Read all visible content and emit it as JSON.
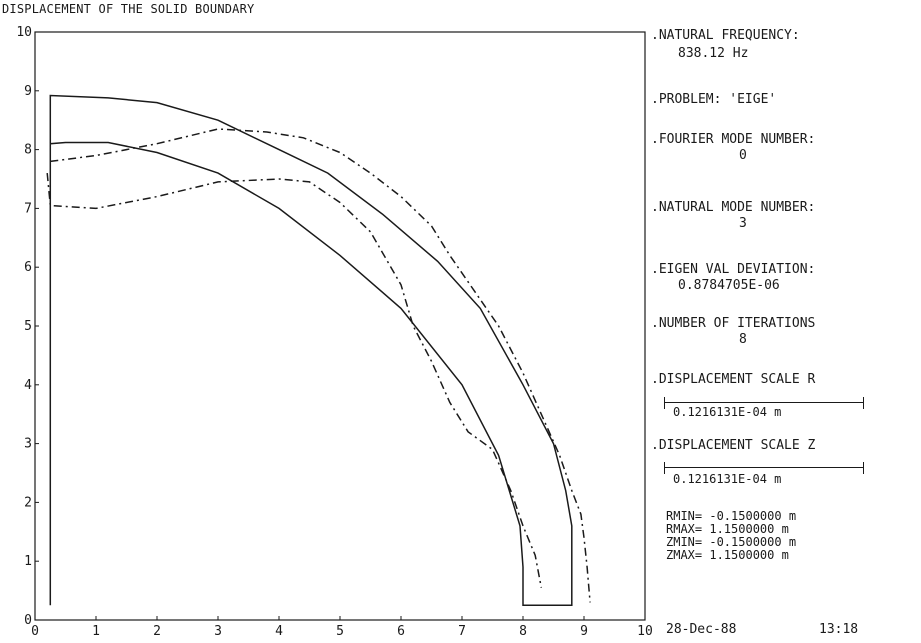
{
  "chart_data": {
    "type": "line",
    "title": "DISPLACEMENT OF THE SOLID BOUNDARY",
    "xlim": [
      0,
      10
    ],
    "ylim": [
      0,
      10
    ],
    "x_ticks": [
      "0",
      "1",
      "2",
      "3",
      "4",
      "5",
      "6",
      "7",
      "8",
      "9",
      "10"
    ],
    "y_ticks": [
      "0",
      "1",
      "2",
      "3",
      "4",
      "5",
      "6",
      "7",
      "8",
      "9",
      "10"
    ],
    "grid": false,
    "series": [
      {
        "style": "solid",
        "color": "#1a1a1a",
        "points": [
          [
            0.25,
            0.25
          ],
          [
            0.25,
            8.1
          ],
          [
            0.5,
            8.12
          ],
          [
            1.2,
            8.12
          ],
          [
            2.0,
            7.95
          ],
          [
            3.0,
            7.6
          ],
          [
            4.0,
            7.0
          ],
          [
            5.0,
            6.2
          ],
          [
            6.0,
            5.3
          ],
          [
            7.0,
            4.0
          ],
          [
            7.6,
            2.8
          ],
          [
            7.95,
            1.6
          ],
          [
            8.0,
            0.9
          ],
          [
            8.0,
            0.25
          ],
          [
            8.8,
            0.25
          ],
          [
            8.8,
            1.6
          ],
          [
            8.7,
            2.2
          ],
          [
            8.5,
            3.0
          ],
          [
            8.0,
            4.0
          ],
          [
            7.3,
            5.3
          ],
          [
            6.6,
            6.1
          ],
          [
            5.7,
            6.9
          ],
          [
            4.8,
            7.6
          ],
          [
            4.0,
            8.0
          ],
          [
            3.0,
            8.5
          ],
          [
            2.0,
            8.8
          ],
          [
            1.2,
            8.88
          ],
          [
            0.25,
            8.92
          ]
        ]
      },
      {
        "style": "dash-dot",
        "color": "#1a1a1a",
        "points": [
          [
            0.25,
            7.8
          ],
          [
            1.0,
            7.9
          ],
          [
            2.0,
            8.1
          ],
          [
            3.0,
            8.35
          ],
          [
            3.8,
            8.3
          ],
          [
            4.4,
            8.2
          ],
          [
            5.0,
            7.95
          ],
          [
            5.5,
            7.6
          ],
          [
            6.0,
            7.2
          ],
          [
            6.5,
            6.7
          ],
          [
            6.8,
            6.2
          ],
          [
            7.2,
            5.6
          ],
          [
            7.6,
            5.0
          ],
          [
            8.0,
            4.2
          ],
          [
            8.3,
            3.5
          ],
          [
            8.6,
            2.8
          ],
          [
            8.8,
            2.2
          ],
          [
            8.95,
            1.8
          ],
          [
            9.0,
            1.4
          ],
          [
            9.05,
            0.9
          ],
          [
            9.1,
            0.3
          ]
        ]
      },
      {
        "style": "dash-dot",
        "color": "#1a1a1a",
        "points": [
          [
            0.2,
            7.6
          ],
          [
            0.25,
            7.05
          ],
          [
            1.0,
            7.0
          ],
          [
            2.0,
            7.2
          ],
          [
            3.0,
            7.45
          ],
          [
            4.0,
            7.5
          ],
          [
            4.5,
            7.45
          ],
          [
            5.0,
            7.1
          ],
          [
            5.5,
            6.6
          ],
          [
            6.0,
            5.7
          ],
          [
            6.2,
            5.0
          ],
          [
            6.5,
            4.4
          ],
          [
            6.8,
            3.7
          ],
          [
            7.1,
            3.2
          ],
          [
            7.5,
            2.9
          ],
          [
            7.8,
            2.2
          ],
          [
            8.0,
            1.6
          ],
          [
            8.2,
            1.1
          ],
          [
            8.3,
            0.55
          ]
        ]
      }
    ]
  },
  "info": {
    "natural_frequency_label": ".NATURAL FREQUENCY:",
    "natural_frequency_value": "838.12 Hz",
    "problem": ".PROBLEM: 'EIGE'",
    "fourier_label": ".FOURIER MODE NUMBER:",
    "fourier_value": "0",
    "natural_mode_label": ".NATURAL MODE NUMBER:",
    "natural_mode_value": "3",
    "eigen_label": ".EIGEN VAL DEVIATION:",
    "eigen_value": "0.8784705E-06",
    "iterations_label": ".NUMBER OF ITERATIONS",
    "iterations_value": "8",
    "disp_scale_r_label": ".DISPLACEMENT SCALE R",
    "disp_scale_r_value": "0.1216131E-04 m",
    "disp_scale_z_label": ".DISPLACEMENT SCALE Z",
    "disp_scale_z_value": "0.1216131E-04 m",
    "rmin": "RMIN= -0.1500000 m",
    "rmax": "RMAX=  1.1500000 m",
    "zmin": "ZMIN= -0.1500000 m",
    "zmax": "ZMAX=  1.1500000 m"
  },
  "footer": {
    "date": "28-Dec-88",
    "time": "13:18"
  }
}
